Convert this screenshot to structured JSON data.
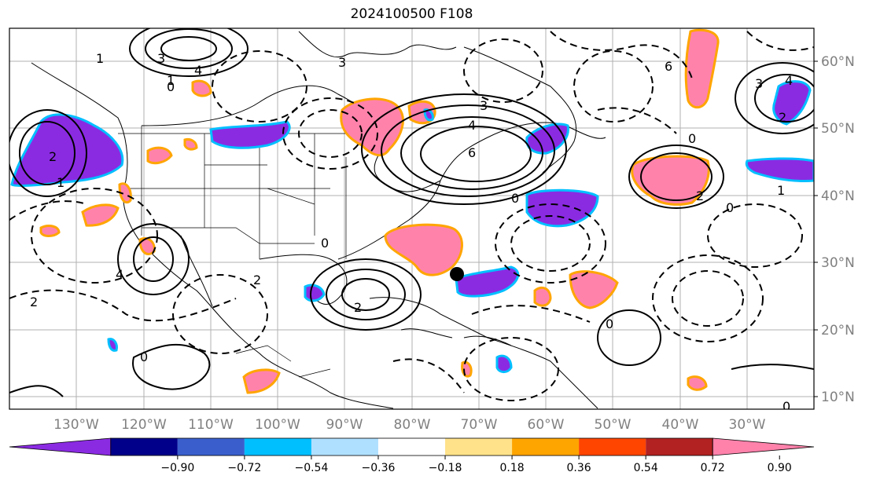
{
  "title": "2024100500 F108",
  "lat_labels": [
    "60°N",
    "50°N",
    "40°N",
    "30°N",
    "20°N",
    "10°N"
  ],
  "lon_labels": [
    "130°W",
    "120°W",
    "110°W",
    "100°W",
    "90°W",
    "80°W",
    "70°W",
    "60°W",
    "50°W",
    "40°W",
    "30°W"
  ],
  "colorbar": {
    "colors": [
      "#8a2be2",
      "#00008b",
      "#3a5fcd",
      "#00bfff",
      "#b0e0ff",
      "#ffffff",
      "#ffe28a",
      "#ffa500",
      "#ff4500",
      "#b22222",
      "#ff82ab"
    ],
    "tick_labels": [
      "−0.90",
      "−0.72",
      "−0.54",
      "−0.36",
      "−0.18",
      "0.18",
      "0.36",
      "0.54",
      "0.72",
      "0.90"
    ]
  },
  "contour_labels": [
    "4",
    "3",
    "2",
    "1",
    "0",
    "2",
    "3",
    "4",
    "6",
    "2",
    "1",
    "0",
    "2",
    "2",
    "3",
    "4",
    "1",
    "2",
    "0",
    "2",
    "3",
    "4",
    "6",
    "2",
    "1",
    "0",
    "2",
    "0"
  ],
  "marker": "storm-center-dot"
}
